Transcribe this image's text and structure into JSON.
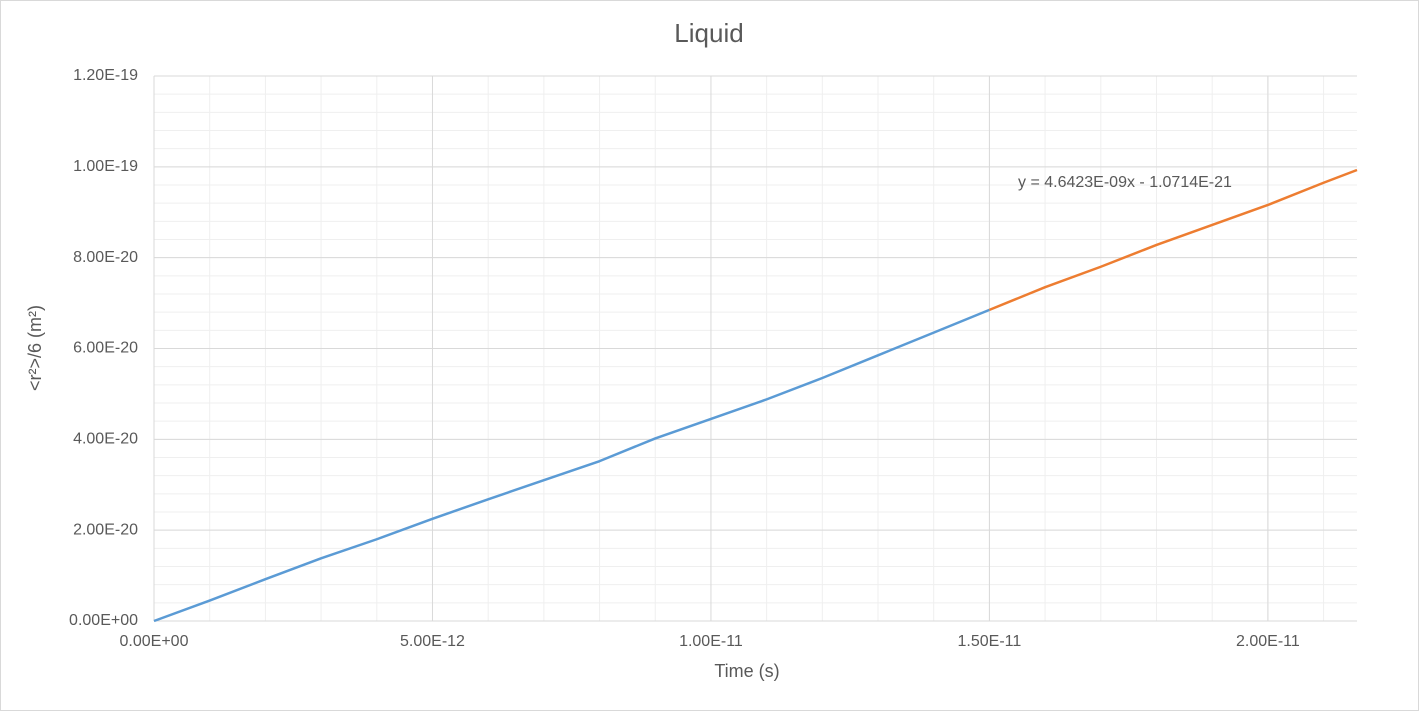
{
  "chart_data": {
    "type": "line",
    "title": "Liquid",
    "x_label": "Time (s)",
    "y_label": "<r²>/6 (m²)",
    "annotation": "y = 4.6423E-09x - 1.0714E-21",
    "xlim": [
      0,
      2.16e-11
    ],
    "ylim": [
      0,
      1.2e-19
    ],
    "xticks": [
      {
        "value": 0,
        "label": "0.00E+00"
      },
      {
        "value": 5e-12,
        "label": "5.00E-12"
      },
      {
        "value": 1e-11,
        "label": "1.00E-11"
      },
      {
        "value": 1.5e-11,
        "label": "1.50E-11"
      },
      {
        "value": 2e-11,
        "label": "2.00E-11"
      }
    ],
    "yticks": [
      {
        "value": 0,
        "label": "0.00E+00"
      },
      {
        "value": 2e-20,
        "label": "2.00E-20"
      },
      {
        "value": 4e-20,
        "label": "4.00E-20"
      },
      {
        "value": 6e-20,
        "label": "6.00E-20"
      },
      {
        "value": 8e-20,
        "label": "8.00E-20"
      },
      {
        "value": 1e-19,
        "label": "1.00E-19"
      },
      {
        "value": 1.2e-19,
        "label": "1.20E-19"
      }
    ],
    "grid": true,
    "minor_grid": true,
    "series": [
      {
        "color": "#5b9bd5",
        "x": [
          0,
          1e-12,
          2e-12,
          3e-12,
          4e-12,
          5e-12,
          6e-12,
          7e-12,
          8e-12,
          9e-12,
          1e-11,
          1.1e-11,
          1.2e-11,
          1.3e-11,
          1.4e-11,
          1.5e-11
        ],
        "values": [
          0,
          4.5e-21,
          9.2e-21,
          1.38e-20,
          1.8e-20,
          2.25e-20,
          2.68e-20,
          3.1e-20,
          3.52e-20,
          4.02e-20,
          4.45e-20,
          4.88e-20,
          5.35e-20,
          5.85e-20,
          6.35e-20,
          6.85e-20
        ]
      },
      {
        "color": "#ed7d31",
        "x": [
          1.5e-11,
          1.6e-11,
          1.7e-11,
          1.8e-11,
          1.9e-11,
          2e-11,
          2.1e-11,
          2.16e-11
        ],
        "values": [
          6.85e-20,
          7.35e-20,
          7.8e-20,
          8.28e-20,
          8.72e-20,
          9.16e-20,
          9.65e-20,
          9.93e-20
        ]
      }
    ]
  }
}
